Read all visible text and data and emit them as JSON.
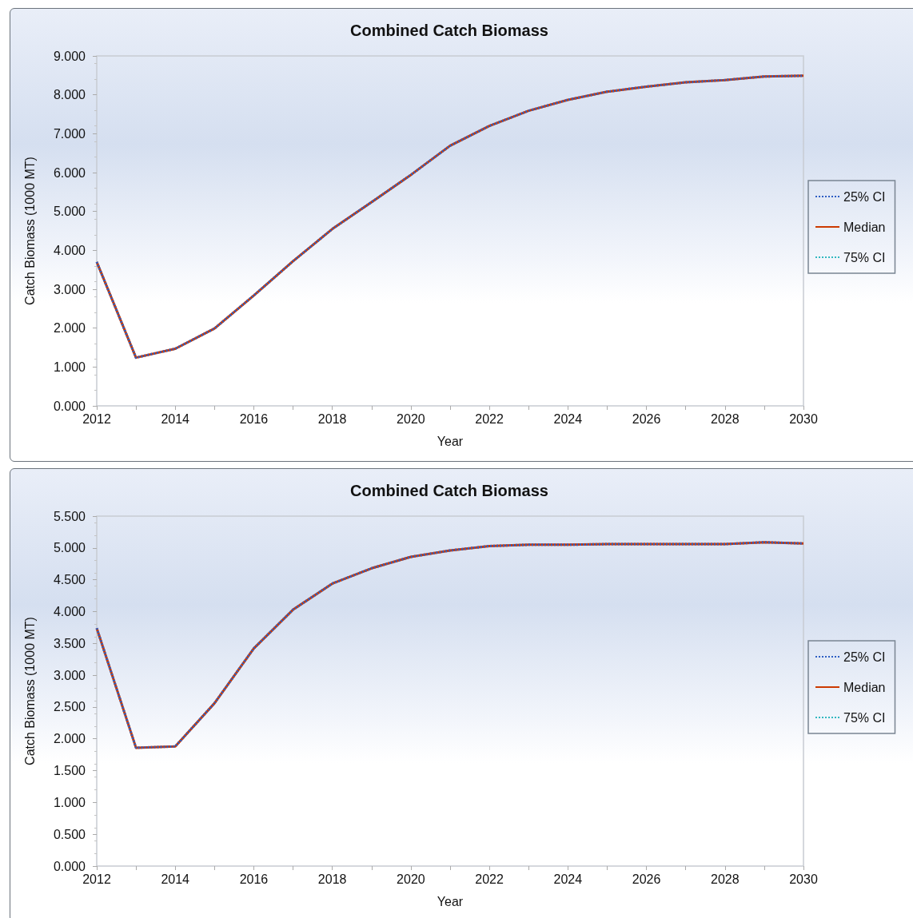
{
  "chart_data": [
    {
      "type": "line",
      "title": "Combined Catch Biomass",
      "xlabel": "Year",
      "ylabel": "Catch Biomass (1000 MT)",
      "x": [
        2012,
        2013,
        2014,
        2015,
        2016,
        2017,
        2018,
        2019,
        2020,
        2021,
        2022,
        2023,
        2024,
        2025,
        2026,
        2027,
        2028,
        2029,
        2030
      ],
      "series": [
        {
          "name": "25% CI",
          "color": "#2f5fc4",
          "line_style": "dotted",
          "values": [
            3.7,
            1.24,
            1.47,
            1.99,
            2.84,
            3.72,
            4.55,
            5.24,
            5.94,
            6.69,
            7.2,
            7.59,
            7.87,
            8.08,
            8.21,
            8.32,
            8.38,
            8.47,
            8.49
          ]
        },
        {
          "name": "Median",
          "color": "#cc3a00",
          "line_style": "solid",
          "values": [
            3.7,
            1.24,
            1.47,
            1.99,
            2.84,
            3.72,
            4.55,
            5.24,
            5.94,
            6.69,
            7.2,
            7.59,
            7.87,
            8.08,
            8.21,
            8.32,
            8.38,
            8.47,
            8.49
          ]
        },
        {
          "name": "75% CI",
          "color": "#33b8c0",
          "line_style": "dotted",
          "values": [
            null,
            null,
            null,
            null,
            null,
            null,
            null,
            null,
            null,
            null,
            null,
            null,
            null,
            null,
            null,
            null,
            null,
            null,
            null
          ]
        }
      ],
      "xlim": [
        2012,
        2030
      ],
      "xticks": [
        2012,
        {
          "value": 2013,
          "label": null
        },
        2014,
        {
          "value": 2015,
          "label": null
        },
        2016,
        {
          "value": 2017,
          "label": null
        },
        2018,
        {
          "value": 2019,
          "label": null
        },
        2020,
        {
          "value": 2021,
          "label": null
        },
        2022,
        {
          "value": 2023,
          "label": null
        },
        2024,
        {
          "value": 2025,
          "label": null
        },
        2026,
        {
          "value": 2027,
          "label": null
        },
        2028,
        {
          "value": 2029,
          "label": null
        },
        2030
      ],
      "ylim": [
        0,
        9
      ],
      "yticks": [
        {
          "value": 0,
          "label": "0.000"
        },
        {
          "value": 1,
          "label": "1.000"
        },
        {
          "value": 2,
          "label": "2.000"
        },
        {
          "value": 3,
          "label": "3.000"
        },
        {
          "value": 4,
          "label": "4.000"
        },
        {
          "value": 5,
          "label": "5.000"
        },
        {
          "value": 6,
          "label": "6.000"
        },
        {
          "value": 7,
          "label": "7.000"
        },
        {
          "value": 8,
          "label": "8.000"
        },
        {
          "value": 9,
          "label": "9.000"
        }
      ],
      "grid": false,
      "legend": "right",
      "marker": "none"
    },
    {
      "type": "line",
      "title": "Combined Catch Biomass",
      "xlabel": "Year",
      "ylabel": "Catch Biomass (1000 MT)",
      "x": [
        2012,
        2013,
        2014,
        2015,
        2016,
        2017,
        2018,
        2019,
        2020,
        2021,
        2022,
        2023,
        2024,
        2025,
        2026,
        2027,
        2028,
        2029,
        2030
      ],
      "series": [
        {
          "name": "25% CI",
          "color": "#2f5fc4",
          "line_style": "dotted",
          "values": [
            3.74,
            1.86,
            1.88,
            2.56,
            3.42,
            4.03,
            4.44,
            4.68,
            4.86,
            4.96,
            5.03,
            5.05,
            5.05,
            5.06,
            5.06,
            5.06,
            5.06,
            5.09,
            5.07
          ]
        },
        {
          "name": "Median",
          "color": "#cc3a00",
          "line_style": "solid",
          "values": [
            3.74,
            1.86,
            1.88,
            2.56,
            3.42,
            4.03,
            4.44,
            4.68,
            4.86,
            4.96,
            5.03,
            5.05,
            5.05,
            5.06,
            5.06,
            5.06,
            5.06,
            5.09,
            5.07
          ]
        },
        {
          "name": "75% CI",
          "color": "#33b8c0",
          "line_style": "dotted",
          "values": [
            null,
            null,
            null,
            null,
            null,
            null,
            null,
            null,
            null,
            null,
            null,
            null,
            null,
            null,
            null,
            null,
            null,
            null,
            null
          ]
        }
      ],
      "xlim": [
        2012,
        2030
      ],
      "xticks": [
        2012,
        {
          "value": 2013,
          "label": null
        },
        2014,
        {
          "value": 2015,
          "label": null
        },
        2016,
        {
          "value": 2017,
          "label": null
        },
        2018,
        {
          "value": 2019,
          "label": null
        },
        2020,
        {
          "value": 2021,
          "label": null
        },
        2022,
        {
          "value": 2023,
          "label": null
        },
        2024,
        {
          "value": 2025,
          "label": null
        },
        2026,
        {
          "value": 2027,
          "label": null
        },
        2028,
        {
          "value": 2029,
          "label": null
        },
        2030
      ],
      "ylim": [
        0,
        5.5
      ],
      "yticks": [
        {
          "value": 0,
          "label": "0.000"
        },
        {
          "value": 0.5,
          "label": "0.500"
        },
        {
          "value": 1,
          "label": "1.000"
        },
        {
          "value": 1.5,
          "label": "1.500"
        },
        {
          "value": 2,
          "label": "2.000"
        },
        {
          "value": 2.5,
          "label": "2.500"
        },
        {
          "value": 3,
          "label": "3.000"
        },
        {
          "value": 3.5,
          "label": "3.500"
        },
        {
          "value": 4,
          "label": "4.000"
        },
        {
          "value": 4.5,
          "label": "4.500"
        },
        {
          "value": 5,
          "label": "5.000"
        },
        {
          "value": 5.5,
          "label": "5.500"
        }
      ],
      "grid": false,
      "legend": "right",
      "marker": "none"
    }
  ]
}
